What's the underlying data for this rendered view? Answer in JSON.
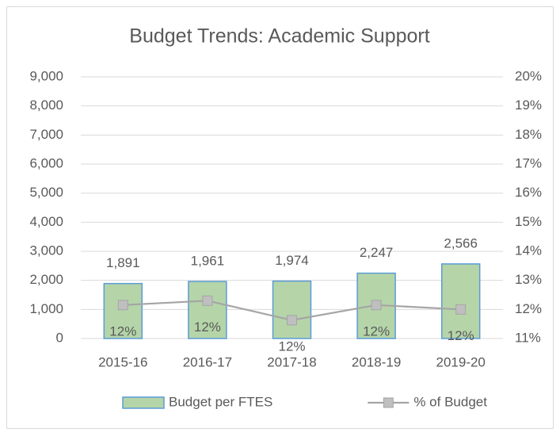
{
  "chart_data": {
    "type": "combo",
    "title": "Budget Trends: Academic Support",
    "categories": [
      "2015-16",
      "2016-17",
      "2017-18",
      "2018-19",
      "2019-20"
    ],
    "series": [
      {
        "name": "Budget per FTES",
        "type": "bar",
        "color": "#b5d5a9",
        "edge_color": "#5b9bd5",
        "values": [
          1891,
          1961,
          1974,
          2247,
          2566
        ],
        "value_labels": [
          "1,891",
          "1,961",
          "1,974",
          "2,247",
          "2,566"
        ]
      },
      {
        "name": "% of Budget",
        "type": "line",
        "axis": "y2",
        "color": "#a5a5a5",
        "marker_color": "#bfbfbf",
        "values": [
          12.15,
          12.3,
          11.63,
          12.15,
          12.0
        ],
        "value_labels": [
          "12%",
          "12%",
          "12%",
          "12%",
          "12%"
        ]
      }
    ],
    "ylim": [
      0,
      9000
    ],
    "yticks": [
      0,
      {
        "value": 1000,
        "label": "1,000"
      },
      {
        "value": 2000,
        "label": "2,000"
      },
      {
        "value": 3000,
        "label": "3,000"
      },
      {
        "value": 4000,
        "label": "4,000"
      },
      {
        "value": 5000,
        "label": "5,000"
      },
      {
        "value": 6000,
        "label": "6,000"
      },
      {
        "value": 7000,
        "label": "7,000"
      },
      {
        "value": 8000,
        "label": "8,000"
      },
      {
        "value": 9000,
        "label": "9,000"
      }
    ],
    "y2lim": [
      11,
      20
    ],
    "y2ticks": [
      {
        "value": 11,
        "label": "11%"
      },
      {
        "value": 12,
        "label": "12%"
      },
      {
        "value": 13,
        "label": "13%"
      },
      {
        "value": 14,
        "label": "14%"
      },
      {
        "value": 15,
        "label": "15%"
      },
      {
        "value": 16,
        "label": "16%"
      },
      {
        "value": 17,
        "label": "17%"
      },
      {
        "value": 18,
        "label": "18%"
      },
      {
        "value": 19,
        "label": "19%"
      },
      {
        "value": 20,
        "label": "20%"
      }
    ],
    "grid": true,
    "legend": "bottom"
  }
}
